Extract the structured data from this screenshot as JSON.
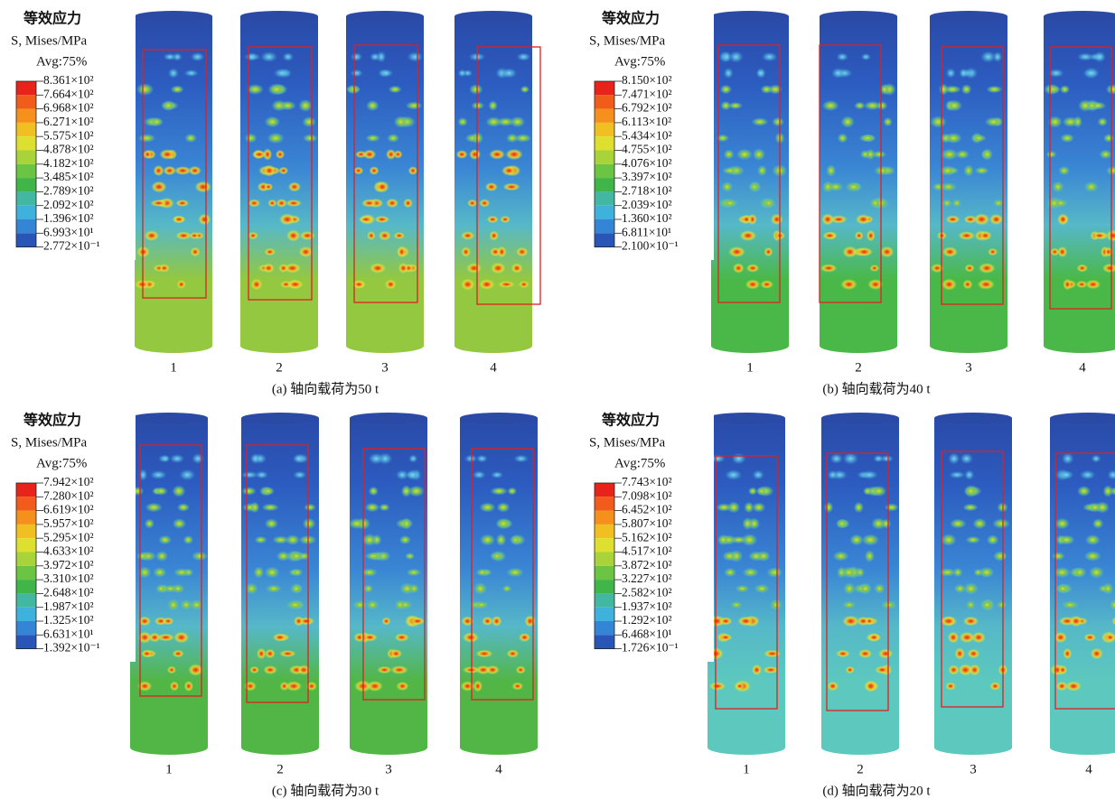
{
  "panels": [
    {
      "legend": {
        "title": "等效应力",
        "subtitle": "S, Mises/MPa",
        "avg": "Avg:75%",
        "labels": [
          "8.361×10²",
          "7.664×10²",
          "6.968×10²",
          "6.271×10²",
          "5.575×10²",
          "4.878×10²",
          "4.182×10²",
          "3.485×10²",
          "2.789×10²",
          "2.092×10²",
          "1.396×10²",
          "6.993×10¹",
          "2.772×10⁻¹"
        ]
      },
      "columns": [
        "1",
        "2",
        "3",
        "4"
      ],
      "caption": "(a) 轴向载荷为50 t"
    },
    {
      "legend": {
        "title": "等效应力",
        "subtitle": "S, Mises/MPa",
        "avg": "Avg:75%",
        "labels": [
          "8.150×10²",
          "7.471×10²",
          "6.792×10²",
          "6.113×10²",
          "5.434×10²",
          "4.755×10²",
          "4.076×10²",
          "3.397×10²",
          "2.718×10²",
          "2.039×10²",
          "1.360×10²",
          "6.811×10¹",
          "2.100×10⁻¹"
        ]
      },
      "columns": [
        "1",
        "2",
        "3",
        "4"
      ],
      "caption": "(b) 轴向载荷为40 t"
    },
    {
      "legend": {
        "title": "等效应力",
        "subtitle": "S, Mises/MPa",
        "avg": "Avg:75%",
        "labels": [
          "7.942×10²",
          "7.280×10²",
          "6.619×10²",
          "5.957×10²",
          "5.295×10²",
          "4.633×10²",
          "3.972×10²",
          "3.310×10²",
          "2.648×10²",
          "1.987×10²",
          "1.325×10²",
          "6.631×10¹",
          "1.392×10⁻¹"
        ]
      },
      "columns": [
        "1",
        "2",
        "3",
        "4"
      ],
      "caption": "(c) 轴向载荷为30 t"
    },
    {
      "legend": {
        "title": "等效应力",
        "subtitle": "S, Mises/MPa",
        "avg": "Avg:75%",
        "labels": [
          "7.743×10²",
          "7.098×10²",
          "6.452×10²",
          "5.807×10²",
          "5.162×10²",
          "4.517×10²",
          "3.872×10²",
          "3.227×10²",
          "2.582×10²",
          "1.937×10²",
          "1.292×10²",
          "6.468×10¹",
          "1.726×10⁻¹"
        ]
      },
      "columns": [
        "1",
        "2",
        "3",
        "4"
      ],
      "caption": "(d) 轴向载荷为20 t"
    }
  ]
}
